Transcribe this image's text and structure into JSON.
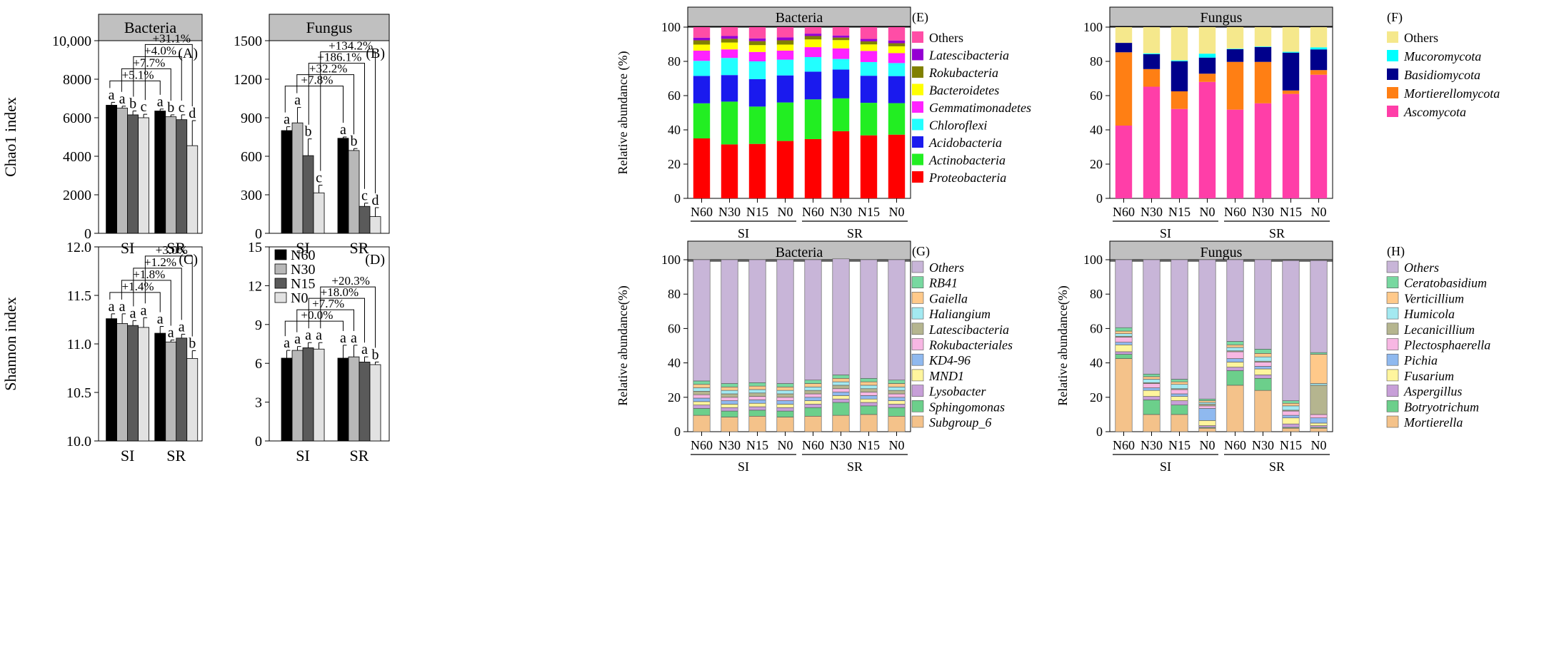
{
  "chart_data": [
    {
      "id": "A",
      "type": "bar",
      "panel_label": "(A)",
      "title": "Bacteria",
      "xlabel": "",
      "ylabel": "Chao1 index",
      "ylim": [
        0,
        10000
      ],
      "yticks": [
        "0",
        "2000",
        "4000",
        "6000",
        "8000",
        "10,000"
      ],
      "groups": [
        "SI",
        "SR"
      ],
      "series": [
        {
          "name": "N60",
          "values": [
            6650,
            6350
          ],
          "errors": [
            150,
            100
          ],
          "letters": [
            "a",
            "a"
          ]
        },
        {
          "name": "N30",
          "values": [
            6500,
            6050
          ],
          "errors": [
            100,
            100
          ],
          "letters": [
            "a",
            "b"
          ]
        },
        {
          "name": "N15",
          "values": [
            6150,
            5900
          ],
          "errors": [
            200,
            250
          ],
          "letters": [
            "b",
            "c"
          ]
        },
        {
          "name": "N0",
          "values": [
            6000,
            4550
          ],
          "errors": [
            180,
            1300
          ],
          "letters": [
            "c",
            "d"
          ]
        }
      ],
      "comparisons": [
        "+5.1%",
        "+7.7%",
        "+4.0%",
        "+31.1%"
      ]
    },
    {
      "id": "B",
      "type": "bar",
      "panel_label": "(B)",
      "title": "Fungus",
      "xlabel": "",
      "ylabel": "",
      "ylim": [
        0,
        1500
      ],
      "yticks": [
        "0",
        "300",
        "600",
        "900",
        "1200",
        "1500"
      ],
      "groups": [
        "SI",
        "SR"
      ],
      "series": [
        {
          "name": "N60",
          "values": [
            800,
            740
          ],
          "errors": [
            30,
            10
          ],
          "letters": [
            "a",
            "a"
          ]
        },
        {
          "name": "N30",
          "values": [
            860,
            645
          ],
          "errors": [
            120,
            15
          ],
          "letters": [
            "a",
            "b"
          ]
        },
        {
          "name": "N15",
          "values": [
            605,
            210
          ],
          "errors": [
            130,
            25
          ],
          "letters": [
            "b",
            "c"
          ]
        },
        {
          "name": "N0",
          "values": [
            315,
            130
          ],
          "errors": [
            60,
            70
          ],
          "letters": [
            "c",
            "d"
          ]
        }
      ],
      "comparisons": [
        "+7.8%",
        "+32.2%",
        "+186.1%",
        "+134.2%"
      ]
    },
    {
      "id": "C",
      "type": "bar",
      "panel_label": "(C)",
      "title": "",
      "xlabel": "",
      "ylabel": "Shannon index",
      "ylim": [
        10.0,
        12.0
      ],
      "yticks": [
        "10.0",
        "10.5",
        "11.0",
        "11.5",
        "12.0"
      ],
      "groups": [
        "SI",
        "SR"
      ],
      "series": [
        {
          "name": "N60",
          "values": [
            11.26,
            11.11
          ],
          "errors": [
            0.05,
            0.07
          ],
          "letters": [
            "a",
            "a"
          ]
        },
        {
          "name": "N30",
          "values": [
            11.21,
            11.02
          ],
          "errors": [
            0.1,
            0.02
          ],
          "letters": [
            "a",
            "a"
          ]
        },
        {
          "name": "N15",
          "values": [
            11.19,
            11.06
          ],
          "errors": [
            0.05,
            0.04
          ],
          "letters": [
            "a",
            "a"
          ]
        },
        {
          "name": "N0",
          "values": [
            11.17,
            10.85
          ],
          "errors": [
            0.1,
            0.08
          ],
          "letters": [
            "a",
            "b"
          ]
        }
      ],
      "comparisons": [
        "+1.4%",
        "+1.8%",
        "+1.2%",
        "+3.0%"
      ]
    },
    {
      "id": "D",
      "type": "bar",
      "panel_label": "(D)",
      "title": "",
      "xlabel": "",
      "ylabel": "",
      "ylim": [
        0,
        15
      ],
      "yticks": [
        "0",
        "3",
        "6",
        "9",
        "12",
        "15"
      ],
      "groups": [
        "SI",
        "SR"
      ],
      "series": [
        {
          "name": "N60",
          "values": [
            6.4,
            6.4
          ],
          "errors": [
            0.6,
            1.0
          ],
          "letters": [
            "a",
            "a"
          ]
        },
        {
          "name": "N30",
          "values": [
            7.0,
            6.5
          ],
          "errors": [
            0.3,
            0.9
          ],
          "letters": [
            "a",
            "a"
          ]
        },
        {
          "name": "N15",
          "values": [
            7.2,
            6.1
          ],
          "errors": [
            0.4,
            0.4
          ],
          "letters": [
            "a",
            "a"
          ]
        },
        {
          "name": "N0",
          "values": [
            7.1,
            5.9
          ],
          "errors": [
            0.5,
            0.2
          ],
          "letters": [
            "a",
            "b"
          ]
        }
      ],
      "comparisons": [
        "+0.0%",
        "+7.7%",
        "+18.0%",
        "+20.3%"
      ],
      "legend": [
        "N60",
        "N30",
        "N15",
        "N0"
      ]
    },
    {
      "id": "E",
      "type": "stacked-bar",
      "panel_label": "(E)",
      "title": "Bacteria",
      "ylabel": "Relative abundance (%)",
      "ylim": [
        0,
        100
      ],
      "yticks": [
        "0",
        "20",
        "40",
        "60",
        "80",
        "100"
      ],
      "categories": [
        "N60",
        "N30",
        "N15",
        "N0",
        "N60",
        "N30",
        "N15",
        "N0"
      ],
      "groups": [
        "SI",
        "SR"
      ],
      "series": [
        {
          "name": "Proteobacteria",
          "color": "#ff0000",
          "values": [
            35,
            31.5,
            31.8,
            33.5,
            34.6,
            39.2,
            36.8,
            37.2
          ]
        },
        {
          "name": "Actinobacteria",
          "color": "#22ee22",
          "values": [
            20.5,
            25,
            21.8,
            22.5,
            23.2,
            19.2,
            19,
            18.4
          ]
        },
        {
          "name": "Acidobacteria",
          "color": "#1a1aee",
          "values": [
            16,
            15.5,
            16,
            15.8,
            16.2,
            16.8,
            15.8,
            15.8
          ]
        },
        {
          "name": "Chloroflexi",
          "color": "#22ffff",
          "values": [
            8.8,
            10,
            10.4,
            9.2,
            8.5,
            6.2,
            8,
            7.6
          ]
        },
        {
          "name": "Gemmatimonadetes",
          "color": "#ff22ff",
          "values": [
            6,
            5,
            5.5,
            5.3,
            5.8,
            6.2,
            6.5,
            5.8
          ]
        },
        {
          "name": "Bacteroidetes",
          "color": "#ffff00",
          "values": [
            3.5,
            4,
            4,
            3.5,
            4.5,
            4.8,
            3.8,
            4
          ]
        },
        {
          "name": "Rokubacteria",
          "color": "#808000",
          "values": [
            2.5,
            2.2,
            2.3,
            2.5,
            2,
            1.5,
            1.8,
            1.8
          ]
        },
        {
          "name": "Latescibacteria",
          "color": "#9400d3",
          "values": [
            1.5,
            1.6,
            1.6,
            1.7,
            1.4,
            1.2,
            1.4,
            1.6
          ]
        },
        {
          "name": "Others",
          "color": "#ff4da6",
          "values": [
            6.2,
            5.2,
            6.6,
            6,
            3.8,
            4.9,
            6.9,
            7.8
          ]
        }
      ]
    },
    {
      "id": "F",
      "type": "stacked-bar",
      "panel_label": "(F)",
      "title": "Fungus",
      "ylabel": "",
      "ylim": [
        0,
        100
      ],
      "yticks": [
        "0",
        "20",
        "40",
        "60",
        "80",
        "100"
      ],
      "categories": [
        "N60",
        "N30",
        "N15",
        "N0",
        "N60",
        "N30",
        "N15",
        "N0"
      ],
      "groups": [
        "SI",
        "SR"
      ],
      "series": [
        {
          "name": "Ascomycota",
          "color": "#ff3ea8",
          "values": [
            42.5,
            65.2,
            52.2,
            68,
            51.8,
            55.5,
            61,
            72.2
          ]
        },
        {
          "name": "Mortierellomycota",
          "color": "#ff7f14",
          "values": [
            42.8,
            10.3,
            10.3,
            4.8,
            27.9,
            24.2,
            2,
            2.7
          ]
        },
        {
          "name": "Basidiomycota",
          "color": "#00008b",
          "values": [
            5.5,
            8.7,
            17.6,
            9.4,
            7.4,
            8.7,
            22.1,
            12.1
          ]
        },
        {
          "name": "Mucoromycota",
          "color": "#00ffff",
          "values": [
            0,
            0.5,
            0.5,
            2.3,
            0.3,
            0.3,
            0.5,
            1.2
          ]
        },
        {
          "name": "Others",
          "color": "#f5e88c",
          "values": [
            9.2,
            15.3,
            19.4,
            15.5,
            12.6,
            11.3,
            14.4,
            11.8
          ]
        }
      ]
    },
    {
      "id": "G",
      "type": "stacked-bar",
      "panel_label": "(G)",
      "title": "Bacteria",
      "ylabel": "Relative abundance(%)",
      "ylim": [
        0,
        100
      ],
      "yticks": [
        "0",
        "20",
        "40",
        "60",
        "80",
        "100"
      ],
      "categories": [
        "N60",
        "N30",
        "N15",
        "N0",
        "N60",
        "N30",
        "N15",
        "N0"
      ],
      "groups": [
        "SI",
        "SR"
      ],
      "series": [
        {
          "name": "Subgroup_6",
          "color": "#f4c28a",
          "values": [
            9.5,
            8.5,
            9,
            8.5,
            9,
            9.5,
            10,
            9
          ]
        },
        {
          "name": "Sphingomonas",
          "color": "#6ccf8b",
          "values": [
            4,
            3.5,
            3.5,
            3.5,
            5,
            7.5,
            5,
            5
          ]
        },
        {
          "name": "Lysobacter",
          "color": "#c79fd8",
          "values": [
            2,
            2,
            2,
            2,
            2,
            2,
            2,
            2
          ]
        },
        {
          "name": "MND1",
          "color": "#fff59d",
          "values": [
            2,
            2,
            2,
            2,
            2,
            2,
            2,
            2
          ]
        },
        {
          "name": "KD4-96",
          "color": "#8fb9ef",
          "values": [
            2,
            2,
            2,
            2,
            2,
            2,
            2,
            2
          ]
        },
        {
          "name": "Rokubacteriales",
          "color": "#f7b7e3",
          "values": [
            2,
            2,
            2,
            2,
            2,
            2,
            2,
            2
          ]
        },
        {
          "name": "Latescibacteria",
          "color": "#b5b58f",
          "values": [
            2,
            2,
            2,
            2,
            2,
            2,
            2,
            2
          ]
        },
        {
          "name": "Haliangium",
          "color": "#a3e9f1",
          "values": [
            2,
            2,
            2,
            2,
            2,
            2,
            2,
            2
          ]
        },
        {
          "name": "Gaiella",
          "color": "#ffc98a",
          "values": [
            2,
            2,
            2,
            2,
            2,
            2,
            2,
            2
          ]
        },
        {
          "name": "RB41",
          "color": "#78d8a0",
          "values": [
            2,
            2,
            2,
            2,
            2,
            2,
            2,
            2
          ]
        },
        {
          "name": "Others",
          "color": "#c8b5d8",
          "values": [
            70.5,
            72,
            71.5,
            72,
            70,
            67.5,
            69,
            70
          ]
        }
      ]
    },
    {
      "id": "H",
      "type": "stacked-bar",
      "panel_label": "(H)",
      "title": "Fungus",
      "ylabel": "Relative abundance(%)",
      "ylim": [
        0,
        100
      ],
      "yticks": [
        "0",
        "20",
        "40",
        "60",
        "80",
        "100"
      ],
      "categories": [
        "N60",
        "N30",
        "N15",
        "N0",
        "N60",
        "N30",
        "N15",
        "N0"
      ],
      "groups": [
        "SI",
        "SR"
      ],
      "series": [
        {
          "name": "Mortierella",
          "color": "#f4c28a",
          "values": [
            42.5,
            10,
            10,
            2,
            27,
            24,
            2,
            2
          ]
        },
        {
          "name": "Botryotrichum",
          "color": "#6ccf8b",
          "values": [
            2.5,
            8.5,
            5.5,
            0.5,
            8.5,
            7,
            0.5,
            0.5
          ]
        },
        {
          "name": "Aspergillus",
          "color": "#c79fd8",
          "values": [
            1.5,
            2,
            2.5,
            1,
            2,
            2,
            2,
            1
          ]
        },
        {
          "name": "Fusarium",
          "color": "#fff59d",
          "values": [
            4,
            3.5,
            2.5,
            3,
            3,
            3.5,
            3.5,
            1.5
          ]
        },
        {
          "name": "Pichia",
          "color": "#8fb9ef",
          "values": [
            1.5,
            1.5,
            1.5,
            7,
            2,
            1.5,
            1.5,
            3
          ]
        },
        {
          "name": "Plectosphaerella",
          "color": "#f7b7e3",
          "values": [
            3,
            2.5,
            2.5,
            1.5,
            4,
            2.5,
            2.5,
            2
          ]
        },
        {
          "name": "Lecanicillium",
          "color": "#b5b58f",
          "values": [
            0.5,
            0.5,
            0.5,
            1,
            0.5,
            0.5,
            0.5,
            17
          ]
        },
        {
          "name": "Humicola",
          "color": "#a3e9f1",
          "values": [
            1.5,
            2,
            2.5,
            1,
            2,
            2.5,
            2.5,
            1
          ]
        },
        {
          "name": "Verticillium",
          "color": "#ffc98a",
          "values": [
            1.5,
            1.5,
            1.5,
            1,
            1.5,
            2,
            1.5,
            17
          ]
        },
        {
          "name": "Ceratobasidium",
          "color": "#78d8a0",
          "values": [
            2,
            1.5,
            1.5,
            1,
            2,
            2.5,
            1.5,
            1
          ]
        },
        {
          "name": "Others",
          "color": "#c8b5d8",
          "values": [
            39.5,
            66.5,
            69.5,
            81,
            47.5,
            52,
            81.5,
            53.5
          ]
        }
      ]
    }
  ]
}
